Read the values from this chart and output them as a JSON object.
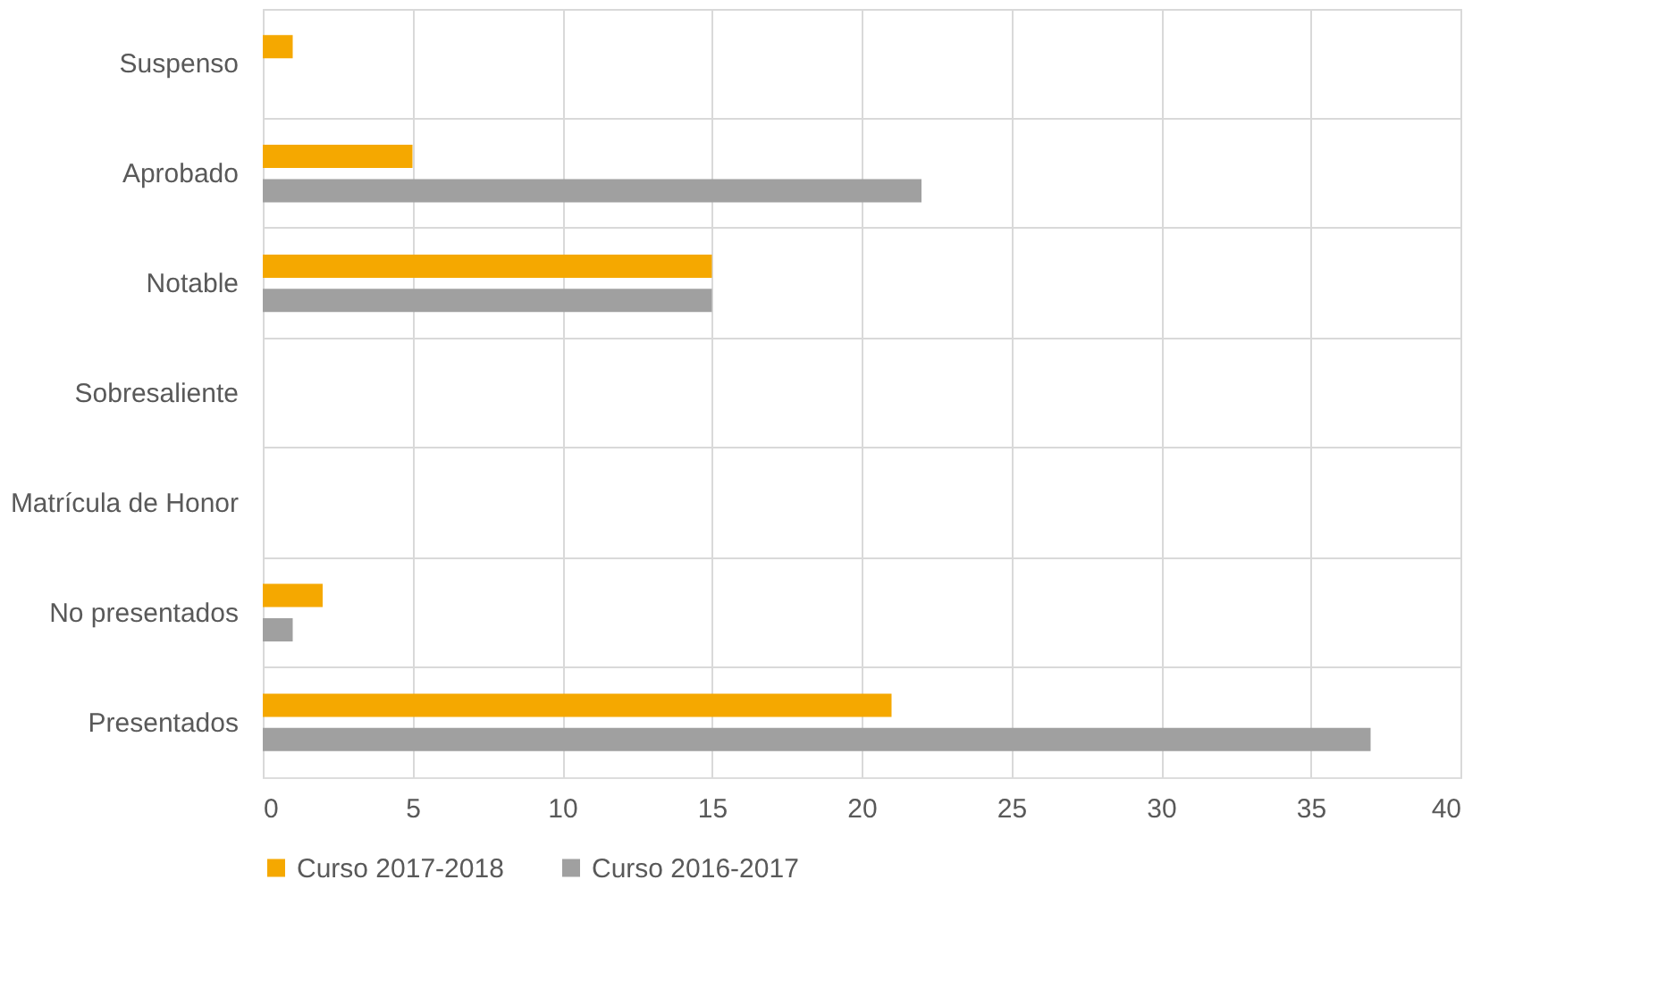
{
  "chart_data": {
    "type": "bar",
    "orientation": "horizontal",
    "categories": [
      "Suspenso",
      "Aprobado",
      "Notable",
      "Sobresaliente",
      "Matrícula de Honor",
      "No presentados",
      "Presentados"
    ],
    "series": [
      {
        "name": "Curso 2017-2018",
        "color": "#f5a800",
        "values": [
          1,
          5,
          15,
          0,
          0,
          2,
          21
        ]
      },
      {
        "name": "Curso 2016-2017",
        "color": "#a0a0a0",
        "values": [
          0,
          22,
          15,
          0,
          0,
          1,
          37
        ]
      }
    ],
    "xlim": [
      0,
      40
    ],
    "xticks": [
      0,
      5,
      10,
      15,
      20,
      25,
      30,
      35,
      40
    ],
    "grid": true,
    "legend": "bottom"
  }
}
